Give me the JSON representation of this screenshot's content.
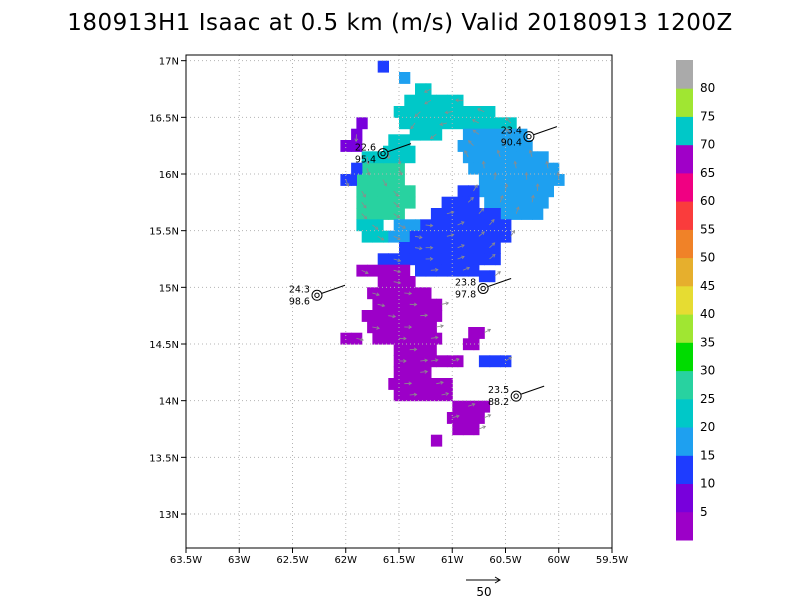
{
  "title": "180913H1 Isaac at 0.5 km (m/s) Valid 20180913  1200Z",
  "chart_data": {
    "type": "heatmap",
    "title": "180913H1 Isaac at 0.5 km (m/s) Valid 20180913  1200Z",
    "xlim": [
      -63.5,
      -59.5
    ],
    "ylim": [
      12.7,
      17.05
    ],
    "x_ticks": [
      {
        "v": -63.5,
        "label": "63.5W"
      },
      {
        "v": -63.0,
        "label": "63W"
      },
      {
        "v": -62.5,
        "label": "62.5W"
      },
      {
        "v": -62.0,
        "label": "62W"
      },
      {
        "v": -61.5,
        "label": "61.5W"
      },
      {
        "v": -61.0,
        "label": "61W"
      },
      {
        "v": -60.5,
        "label": "60.5W"
      },
      {
        "v": -60.0,
        "label": "60W"
      },
      {
        "v": -59.5,
        "label": "59.5W"
      }
    ],
    "y_ticks": [
      {
        "v": 13.0,
        "label": "13N"
      },
      {
        "v": 13.5,
        "label": "13.5N"
      },
      {
        "v": 14.0,
        "label": "14N"
      },
      {
        "v": 14.5,
        "label": "14.5N"
      },
      {
        "v": 15.0,
        "label": "15N"
      },
      {
        "v": 15.5,
        "label": "15.5N"
      },
      {
        "v": 16.0,
        "label": "16N"
      },
      {
        "v": 16.5,
        "label": "16.5N"
      },
      {
        "v": 17.0,
        "label": "17N"
      }
    ],
    "grid": true,
    "colorbar": {
      "levels": [
        {
          "min": 0,
          "max": 5,
          "color": "#9c00c8"
        },
        {
          "min": 5,
          "max": 10,
          "color": "#7800dc"
        },
        {
          "min": 10,
          "max": 15,
          "color": "#1e3cff"
        },
        {
          "min": 15,
          "max": 20,
          "color": "#1ea0f0"
        },
        {
          "min": 20,
          "max": 25,
          "color": "#00c8c8"
        },
        {
          "min": 25,
          "max": 30,
          "color": "#28d2a0"
        },
        {
          "min": 30,
          "max": 35,
          "color": "#00dc00"
        },
        {
          "min": 35,
          "max": 40,
          "color": "#a0e632"
        },
        {
          "min": 40,
          "max": 45,
          "color": "#e6dc32"
        },
        {
          "min": 45,
          "max": 50,
          "color": "#e6af2d"
        },
        {
          "min": 50,
          "max": 55,
          "color": "#f08228"
        },
        {
          "min": 55,
          "max": 60,
          "color": "#fa3c3c"
        },
        {
          "min": 60,
          "max": 65,
          "color": "#f00082"
        },
        {
          "min": 65,
          "max": 70,
          "color": "#a000c8"
        },
        {
          "min": 70,
          "max": 75,
          "color": "#00c8c8"
        },
        {
          "min": 75,
          "max": 80,
          "color": "#a0e632"
        },
        {
          "min": 80,
          "max": 85,
          "color": "#aaaaaa"
        }
      ],
      "labels": [
        "5",
        "10",
        "15",
        "20",
        "25",
        "30",
        "35",
        "40",
        "45",
        "50",
        "55",
        "60",
        "65",
        "70",
        "75",
        "80"
      ]
    },
    "wind_regions": [
      {
        "level": "25-30",
        "color": "#28d2a0",
        "rows": [
          {
            "lat": 16.05,
            "lon": [
              -61.85,
              -61.45
            ]
          },
          {
            "lat": 15.95,
            "lon": [
              -61.9,
              -61.45
            ]
          },
          {
            "lat": 15.85,
            "lon": [
              -61.9,
              -61.35
            ]
          },
          {
            "lat": 15.75,
            "lon": [
              -61.9,
              -61.35
            ]
          },
          {
            "lat": 15.65,
            "lon": [
              -61.9,
              -61.45
            ]
          }
        ]
      },
      {
        "level": "20-25",
        "color": "#00c8c8",
        "rows": [
          {
            "lat": 16.75,
            "lon": [
              -61.35,
              -61.2
            ]
          },
          {
            "lat": 16.65,
            "lon": [
              -61.45,
              -60.9
            ]
          },
          {
            "lat": 16.55,
            "lon": [
              -61.55,
              -60.6
            ]
          },
          {
            "lat": 16.45,
            "lon": [
              -61.5,
              -60.4
            ]
          },
          {
            "lat": 16.35,
            "lon": [
              -61.4,
              -61.1
            ]
          },
          {
            "lat": 16.3,
            "lon": [
              -61.6,
              -61.4
            ]
          },
          {
            "lat": 16.2,
            "lon": [
              -61.65,
              -61.35
            ]
          },
          {
            "lat": 16.15,
            "lon": [
              -61.85,
              -61.35
            ]
          },
          {
            "lat": 15.55,
            "lon": [
              -61.9,
              -61.65
            ]
          },
          {
            "lat": 15.45,
            "lon": [
              -61.85,
              -61.6
            ]
          }
        ]
      },
      {
        "level": "15-20",
        "color": "#1ea0f0",
        "rows": [
          {
            "lat": 16.35,
            "lon": [
              -60.9,
              -60.3
            ]
          },
          {
            "lat": 16.25,
            "lon": [
              -60.95,
              -60.25
            ]
          },
          {
            "lat": 16.15,
            "lon": [
              -60.9,
              -60.1
            ]
          },
          {
            "lat": 16.05,
            "lon": [
              -60.85,
              -60.0
            ]
          },
          {
            "lat": 15.95,
            "lon": [
              -60.75,
              -59.95
            ]
          },
          {
            "lat": 15.85,
            "lon": [
              -60.75,
              -60.05
            ]
          },
          {
            "lat": 15.75,
            "lon": [
              -60.7,
              -60.1
            ]
          },
          {
            "lat": 15.65,
            "lon": [
              -60.55,
              -60.15
            ]
          },
          {
            "lat": 15.55,
            "lon": [
              -61.55,
              -61.3
            ]
          },
          {
            "lat": 15.45,
            "lon": [
              -61.6,
              -61.4
            ]
          },
          {
            "lat": 15.35,
            "lon": [
              -61.5,
              -61.3
            ]
          },
          {
            "lat": 16.85,
            "lon": [
              -61.5,
              -61.4
            ]
          }
        ]
      },
      {
        "level": "10-15",
        "color": "#1e3cff",
        "rows": [
          {
            "lat": 15.85,
            "lon": [
              -60.95,
              -60.75
            ]
          },
          {
            "lat": 15.75,
            "lon": [
              -61.1,
              -60.75
            ]
          },
          {
            "lat": 15.65,
            "lon": [
              -61.2,
              -60.55
            ]
          },
          {
            "lat": 15.55,
            "lon": [
              -61.3,
              -60.45
            ]
          },
          {
            "lat": 15.45,
            "lon": [
              -61.4,
              -60.45
            ]
          },
          {
            "lat": 15.35,
            "lon": [
              -61.5,
              -60.55
            ]
          },
          {
            "lat": 15.25,
            "lon": [
              -61.7,
              -60.55
            ]
          },
          {
            "lat": 15.15,
            "lon": [
              -61.35,
              -60.75
            ]
          },
          {
            "lat": 15.1,
            "lon": [
              -60.75,
              -60.6
            ]
          },
          {
            "lat": 14.35,
            "lon": [
              -60.75,
              -60.45
            ]
          },
          {
            "lat": 16.95,
            "lon": [
              -61.7,
              -61.6
            ]
          },
          {
            "lat": 16.05,
            "lon": [
              -61.95,
              -61.85
            ]
          },
          {
            "lat": 15.95,
            "lon": [
              -62.05,
              -61.9
            ]
          }
        ]
      },
      {
        "level": "5-10",
        "color": "#7800dc",
        "rows": [
          {
            "lat": 16.45,
            "lon": [
              -61.9,
              -61.8
            ]
          },
          {
            "lat": 16.35,
            "lon": [
              -61.95,
              -61.85
            ]
          },
          {
            "lat": 16.25,
            "lon": [
              -62.05,
              -61.85
            ]
          }
        ]
      },
      {
        "level": "0-5",
        "color": "#9c00c8",
        "rows": [
          {
            "lat": 15.15,
            "lon": [
              -61.9,
              -61.4
            ]
          },
          {
            "lat": 15.05,
            "lon": [
              -61.7,
              -61.35
            ]
          },
          {
            "lat": 14.95,
            "lon": [
              -61.8,
              -61.2
            ]
          },
          {
            "lat": 14.85,
            "lon": [
              -61.75,
              -61.1
            ]
          },
          {
            "lat": 14.75,
            "lon": [
              -61.85,
              -61.1
            ]
          },
          {
            "lat": 14.65,
            "lon": [
              -61.8,
              -61.15
            ]
          },
          {
            "lat": 14.55,
            "lon": [
              -61.75,
              -61.1
            ]
          },
          {
            "lat": 14.45,
            "lon": [
              -61.55,
              -61.15
            ]
          },
          {
            "lat": 14.35,
            "lon": [
              -61.55,
              -61.2
            ]
          },
          {
            "lat": 14.25,
            "lon": [
              -61.55,
              -61.2
            ]
          },
          {
            "lat": 14.15,
            "lon": [
              -61.6,
              -61.0
            ]
          },
          {
            "lat": 14.05,
            "lon": [
              -61.55,
              -61.0
            ]
          },
          {
            "lat": 13.95,
            "lon": [
              -61.0,
              -60.65
            ]
          },
          {
            "lat": 13.85,
            "lon": [
              -61.05,
              -60.7
            ]
          },
          {
            "lat": 13.75,
            "lon": [
              -61.0,
              -60.75
            ]
          },
          {
            "lat": 13.65,
            "lon": [
              -61.2,
              -61.1
            ]
          },
          {
            "lat": 14.6,
            "lon": [
              -60.85,
              -60.7
            ]
          },
          {
            "lat": 14.5,
            "lon": [
              -60.9,
              -60.75
            ]
          },
          {
            "lat": 14.35,
            "lon": [
              -61.35,
              -60.9
            ]
          },
          {
            "lat": 14.55,
            "lon": [
              -62.05,
              -61.85
            ]
          }
        ]
      }
    ],
    "observations": [
      {
        "lat": 16.18,
        "lon": -61.65,
        "temp": "22.6",
        "pressure": "95.4"
      },
      {
        "lat": 16.33,
        "lon": -60.28,
        "temp": "23.4",
        "pressure": "90.4"
      },
      {
        "lat": 14.93,
        "lon": -62.27,
        "temp": "24.3",
        "pressure": "98.6"
      },
      {
        "lat": 14.99,
        "lon": -60.71,
        "temp": "23.8",
        "pressure": "97.8"
      },
      {
        "lat": 14.04,
        "lon": -60.4,
        "temp": "23.5",
        "pressure": "88.2"
      }
    ],
    "reference_vector_label": "50"
  }
}
